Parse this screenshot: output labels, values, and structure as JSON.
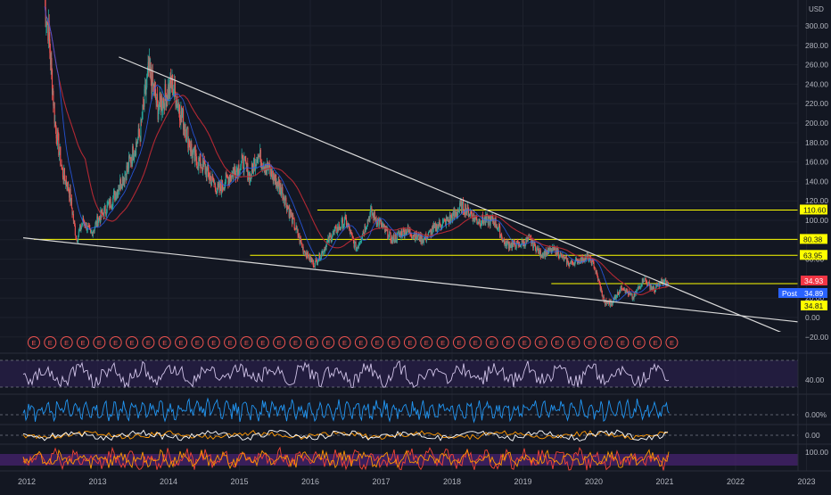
{
  "colors": {
    "background": "#131722",
    "grid": "#1e222d",
    "up": "#26a69a",
    "down": "#ef5350",
    "ma_red": "#b22833",
    "ma_blue": "#2962ff",
    "level_line": "#ffff00",
    "trend_line": "#d9d9d9",
    "rsi": "#d1c4e9",
    "rsi_band": "#2a1f4a",
    "volume_blue": "#2196f3",
    "macd_orange": "#ff9800",
    "stoch_red": "#f44336",
    "stoch_band": "#4a2373"
  },
  "header": {
    "currency": "USD"
  },
  "badges": {
    "current": "34.93",
    "post_label": "Post",
    "post_value": "34.89",
    "low_level": "34.81"
  },
  "earnings_marker_label": "E",
  "earnings_marker_count": 40,
  "indicator_labels": {
    "rsi": "40.00",
    "volume": "0.00%",
    "macd": "0.00",
    "stoch": "100.00"
  },
  "chart_data": {
    "type": "line",
    "subtype": "candlestick",
    "x_ticks": [
      "2012",
      "2013",
      "2014",
      "2015",
      "2016",
      "2017",
      "2018",
      "2019",
      "2020",
      "2021",
      "2022",
      "2023"
    ],
    "y_ticks": [
      "300.00",
      "280.00",
      "260.00",
      "240.00",
      "220.00",
      "200.00",
      "180.00",
      "160.00",
      "140.00",
      "120.00",
      "100.00",
      "80.00",
      "60.00",
      "40.00",
      "20.00",
      "0.00",
      "−20.00"
    ],
    "ylim": [
      -20,
      320
    ],
    "xlim": [
      2012,
      2023
    ],
    "horizontal_levels": [
      110.6,
      80.38,
      63.95,
      34.81
    ],
    "price_path": [
      [
        2012.25,
        320
      ],
      [
        2012.3,
        300
      ],
      [
        2012.4,
        200
      ],
      [
        2012.5,
        150
      ],
      [
        2012.6,
        130
      ],
      [
        2012.7,
        80
      ],
      [
        2012.8,
        100
      ],
      [
        2012.9,
        85
      ],
      [
        2013.0,
        100
      ],
      [
        2013.2,
        120
      ],
      [
        2013.4,
        150
      ],
      [
        2013.6,
        190
      ],
      [
        2013.72,
        255
      ],
      [
        2013.85,
        215
      ],
      [
        2014.05,
        240
      ],
      [
        2014.2,
        205
      ],
      [
        2014.35,
        165
      ],
      [
        2014.5,
        155
      ],
      [
        2014.7,
        130
      ],
      [
        2014.85,
        145
      ],
      [
        2015.05,
        160
      ],
      [
        2015.15,
        145
      ],
      [
        2015.25,
        168
      ],
      [
        2015.45,
        148
      ],
      [
        2015.6,
        130
      ],
      [
        2015.75,
        100
      ],
      [
        2015.9,
        70
      ],
      [
        2016.05,
        55
      ],
      [
        2016.15,
        65
      ],
      [
        2016.3,
        85
      ],
      [
        2016.5,
        100
      ],
      [
        2016.65,
        70
      ],
      [
        2016.85,
        108
      ],
      [
        2017.0,
        95
      ],
      [
        2017.15,
        80
      ],
      [
        2017.35,
        90
      ],
      [
        2017.6,
        80
      ],
      [
        2017.8,
        95
      ],
      [
        2017.95,
        100
      ],
      [
        2018.15,
        115
      ],
      [
        2018.35,
        100
      ],
      [
        2018.6,
        100
      ],
      [
        2018.75,
        75
      ],
      [
        2018.95,
        75
      ],
      [
        2019.1,
        80
      ],
      [
        2019.25,
        65
      ],
      [
        2019.45,
        70
      ],
      [
        2019.65,
        55
      ],
      [
        2019.9,
        62
      ],
      [
        2020.0,
        55
      ],
      [
        2020.15,
        15
      ],
      [
        2020.25,
        15
      ],
      [
        2020.4,
        32
      ],
      [
        2020.55,
        20
      ],
      [
        2020.7,
        40
      ],
      [
        2020.85,
        28
      ],
      [
        2020.95,
        37
      ],
      [
        2021.05,
        34.93
      ]
    ],
    "trend_lines": [
      {
        "name": "upper",
        "from": [
          2013.3,
          268
        ],
        "to": [
          2022.8,
          -20
        ]
      },
      {
        "name": "lower",
        "from": [
          2011.95,
          82
        ],
        "to": [
          2022.95,
          -5
        ]
      }
    ],
    "indicators": [
      "rsi",
      "volume",
      "macd",
      "stochastic"
    ]
  }
}
